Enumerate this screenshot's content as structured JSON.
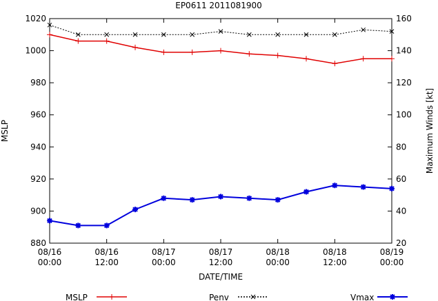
{
  "chart_data": {
    "type": "line",
    "title": "EP0611 2011081900",
    "xlabel": "DATE/TIME",
    "ylabel": "MSLP",
    "y2label": "Maximum Winds [kt]",
    "x": [
      "08/16 00:00",
      "08/16 06:00",
      "08/16 12:00",
      "08/16 18:00",
      "08/17 00:00",
      "08/17 06:00",
      "08/17 12:00",
      "08/17 18:00",
      "08/18 00:00",
      "08/18 06:00",
      "08/18 12:00",
      "08/18 18:00",
      "08/19 00:00"
    ],
    "xticks": [
      {
        "line1": "08/16",
        "line2": "00:00"
      },
      {
        "line1": "08/16",
        "line2": "12:00"
      },
      {
        "line1": "08/17",
        "line2": "00:00"
      },
      {
        "line1": "08/17",
        "line2": "12:00"
      },
      {
        "line1": "08/18",
        "line2": "00:00"
      },
      {
        "line1": "08/18",
        "line2": "12:00"
      },
      {
        "line1": "08/19",
        "line2": "00:00"
      }
    ],
    "ylim": [
      880,
      1020
    ],
    "yticks": [
      "880",
      "900",
      "920",
      "940",
      "960",
      "980",
      "1000",
      "1020"
    ],
    "y2lim": [
      20,
      160
    ],
    "y2ticks": [
      "20",
      "40",
      "60",
      "80",
      "100",
      "120",
      "140",
      "160"
    ],
    "grid": false,
    "legend_position": "bottom",
    "series": [
      {
        "name": "MSLP",
        "axis": "left",
        "color": "#e00000",
        "marker": "plus",
        "values": [
          1010,
          1006,
          1006,
          1002,
          999,
          999,
          1000,
          998,
          997,
          995,
          992,
          995,
          995
        ]
      },
      {
        "name": "Penv",
        "axis": "left",
        "color": "#000000",
        "marker": "x",
        "dashed": true,
        "values": [
          1016,
          1010,
          1010,
          1010,
          1010,
          1010,
          1012,
          1010,
          1010,
          1010,
          1010,
          1013,
          1012
        ]
      },
      {
        "name": "Vmax",
        "axis": "right",
        "color": "#0000dd",
        "marker": "star",
        "values": [
          34,
          31,
          31,
          41,
          48,
          47,
          49,
          48,
          47,
          52,
          56,
          55,
          54
        ]
      }
    ]
  }
}
